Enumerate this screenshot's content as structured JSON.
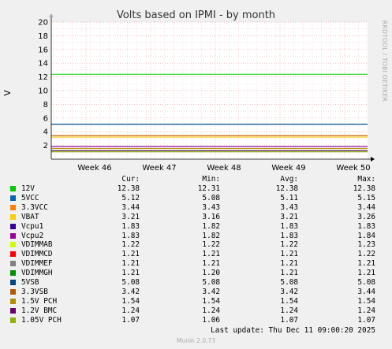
{
  "title": "Volts based on IPMI - by month",
  "side_label": "RRDTOOL / TOBI OETIKER",
  "ylabel": "V",
  "legend_headers": [
    "Cur:",
    "Min:",
    "Avg:",
    "Max:"
  ],
  "last_update": "Last update: Thu Dec 11 09:00:20 2025",
  "footer": "Munin 2.0.73",
  "chart_data": {
    "type": "line",
    "ylim": [
      0,
      20
    ],
    "yticks": [
      "2",
      "4",
      "6",
      "8",
      "10",
      "12",
      "14",
      "16",
      "18",
      "20"
    ],
    "xticks": [
      "Week 46",
      "Week 47",
      "Week 48",
      "Week 49",
      "Week 50"
    ],
    "grid": true,
    "series": [
      {
        "name": "12V",
        "color": "#00cc00",
        "value": 12.38,
        "cur": "12.38",
        "min": "12.31",
        "avg": "12.38",
        "max": "12.38"
      },
      {
        "name": "5VCC",
        "color": "#0066b3",
        "value": 5.12,
        "cur": "5.12",
        "min": "5.08",
        "avg": "5.11",
        "max": "5.15"
      },
      {
        "name": "3.3VCC",
        "color": "#ff8000",
        "value": 3.44,
        "cur": "3.44",
        "min": "3.43",
        "avg": "3.43",
        "max": "3.44"
      },
      {
        "name": "VBAT",
        "color": "#ffcc00",
        "value": 3.21,
        "cur": "3.21",
        "min": "3.16",
        "avg": "3.21",
        "max": "3.26"
      },
      {
        "name": "Vcpu1",
        "color": "#330099",
        "value": 1.83,
        "cur": "1.83",
        "min": "1.82",
        "avg": "1.83",
        "max": "1.83"
      },
      {
        "name": "Vcpu2",
        "color": "#990099",
        "value": 1.83,
        "cur": "1.83",
        "min": "1.82",
        "avg": "1.83",
        "max": "1.84"
      },
      {
        "name": "VDIMMAB",
        "color": "#ccff00",
        "value": 1.22,
        "cur": "1.22",
        "min": "1.22",
        "avg": "1.22",
        "max": "1.23"
      },
      {
        "name": "VDIMMCD",
        "color": "#ff0000",
        "value": 1.21,
        "cur": "1.21",
        "min": "1.21",
        "avg": "1.21",
        "max": "1.22"
      },
      {
        "name": "VDIMMEF",
        "color": "#808080",
        "value": 1.21,
        "cur": "1.21",
        "min": "1.21",
        "avg": "1.21",
        "max": "1.21"
      },
      {
        "name": "VDIMMGH",
        "color": "#008f00",
        "value": 1.21,
        "cur": "1.21",
        "min": "1.20",
        "avg": "1.21",
        "max": "1.21"
      },
      {
        "name": "5VSB",
        "color": "#00487d",
        "value": 5.08,
        "cur": "5.08",
        "min": "5.08",
        "avg": "5.08",
        "max": "5.08"
      },
      {
        "name": "3.3VSB",
        "color": "#b35a00",
        "value": 3.42,
        "cur": "3.42",
        "min": "3.42",
        "avg": "3.42",
        "max": "3.44"
      },
      {
        "name": "1.5V PCH",
        "color": "#b38f00",
        "value": 1.54,
        "cur": "1.54",
        "min": "1.54",
        "avg": "1.54",
        "max": "1.54"
      },
      {
        "name": "1.2V BMC",
        "color": "#6b006b",
        "value": 1.24,
        "cur": "1.24",
        "min": "1.24",
        "avg": "1.24",
        "max": "1.24"
      },
      {
        "name": "1.05V PCH",
        "color": "#8fb300",
        "value": 1.07,
        "cur": "1.07",
        "min": "1.06",
        "avg": "1.07",
        "max": "1.07"
      }
    ]
  }
}
